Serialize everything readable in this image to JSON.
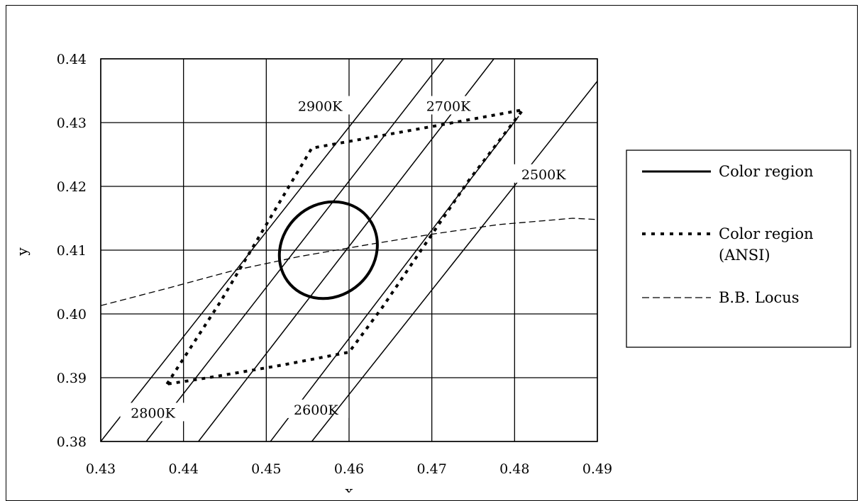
{
  "chart_data": {
    "type": "line",
    "title": "",
    "xlabel": "x",
    "ylabel": "y",
    "xlim": [
      0.43,
      0.49
    ],
    "ylim": [
      0.38,
      0.44
    ],
    "x_ticks": [
      "0.43",
      "0.44",
      "0.45",
      "0.46",
      "0.47",
      "0.48",
      "0.49"
    ],
    "y_ticks": [
      "0.38",
      "0.39",
      "0.40",
      "0.41",
      "0.42",
      "0.43",
      "0.44"
    ],
    "x_tick_values": [
      0.43,
      0.44,
      0.45,
      0.46,
      0.47,
      0.48,
      0.49
    ],
    "y_tick_values": [
      0.38,
      0.39,
      0.4,
      0.41,
      0.42,
      0.43,
      0.44
    ],
    "grid": true,
    "legend_position": "right",
    "legend": [
      {
        "label": "Color region",
        "style": "solid"
      },
      {
        "label": "Color region",
        "label2": "(ANSI)",
        "style": "dotted"
      },
      {
        "label": "B.B. Locus",
        "style": "dashed"
      }
    ],
    "isotherms": [
      {
        "label": "2900K",
        "label_at": [
          0.4565,
          0.4325
        ],
        "points": [
          [
            0.43,
            0.38
          ],
          [
            0.4665,
            0.44
          ]
        ]
      },
      {
        "label": "2800K",
        "label_at": [
          0.4363,
          0.3844
        ],
        "points": [
          [
            0.4355,
            0.38
          ],
          [
            0.4715,
            0.44
          ]
        ]
      },
      {
        "label": "2700K",
        "label_at": [
          0.472,
          0.4325
        ],
        "points": [
          [
            0.4418,
            0.38
          ],
          [
            0.4775,
            0.44
          ]
        ]
      },
      {
        "label": "2600K",
        "label_at": [
          0.456,
          0.3849
        ],
        "points": [
          [
            0.4505,
            0.38
          ],
          [
            0.4805,
            0.431
          ]
        ]
      },
      {
        "label": "2500K",
        "label_at": [
          0.4835,
          0.4218
        ],
        "points": [
          [
            0.4555,
            0.38
          ],
          [
            0.49,
            0.4365
          ]
        ]
      }
    ],
    "series": [
      {
        "name": "Color region",
        "style": "solid",
        "ellipse": {
          "center": [
            0.4575,
            0.41
          ],
          "rx": 0.0062,
          "ry": 0.0072,
          "angle_deg": 42
        }
      },
      {
        "name": "Color region (ANSI)",
        "style": "dotted",
        "points": [
          [
            0.438,
            0.389
          ],
          [
            0.4445,
            0.402
          ],
          [
            0.45,
            0.414
          ],
          [
            0.4555,
            0.426
          ],
          [
            0.4705,
            0.4295
          ],
          [
            0.481,
            0.432
          ],
          [
            0.4745,
            0.421
          ],
          [
            0.4695,
            0.4115
          ],
          [
            0.464,
            0.401
          ],
          [
            0.46,
            0.394
          ],
          [
            0.452,
            0.392
          ],
          [
            0.443,
            0.39
          ],
          [
            0.438,
            0.389
          ]
        ]
      },
      {
        "name": "B.B. Locus",
        "style": "dashed",
        "points": [
          [
            0.43,
            0.4013
          ],
          [
            0.438,
            0.404
          ],
          [
            0.446,
            0.4068
          ],
          [
            0.454,
            0.409
          ],
          [
            0.462,
            0.4108
          ],
          [
            0.47,
            0.4125
          ],
          [
            0.478,
            0.414
          ],
          [
            0.487,
            0.415
          ],
          [
            0.49,
            0.4148
          ]
        ]
      }
    ]
  }
}
